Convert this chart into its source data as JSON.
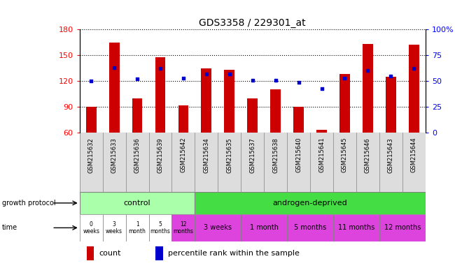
{
  "title": "GDS3358 / 229301_at",
  "samples": [
    "GSM215632",
    "GSM215633",
    "GSM215636",
    "GSM215639",
    "GSM215642",
    "GSM215634",
    "GSM215635",
    "GSM215637",
    "GSM215638",
    "GSM215640",
    "GSM215641",
    "GSM215645",
    "GSM215646",
    "GSM215643",
    "GSM215644"
  ],
  "counts": [
    90,
    165,
    100,
    148,
    92,
    135,
    133,
    100,
    110,
    90,
    63,
    128,
    163,
    125,
    162
  ],
  "percentile_ranks": [
    50,
    63,
    52,
    62,
    53,
    57,
    57,
    51,
    51,
    49,
    43,
    53,
    60,
    55,
    62
  ],
  "ylim_left": [
    60,
    180
  ],
  "ylim_right": [
    0,
    100
  ],
  "yticks_left": [
    60,
    90,
    120,
    150,
    180
  ],
  "yticks_right": [
    0,
    25,
    50,
    75,
    100
  ],
  "bar_color": "#cc0000",
  "dot_color": "#0000cc",
  "bar_base": 60,
  "ctrl_color": "#aaffaa",
  "andro_color": "#44dd44",
  "time_color_ctrl_normal": "#ffffff",
  "time_color_ctrl_pink": "#dd44dd",
  "time_color_andro": "#dd44dd",
  "xticklabel_bg": "#dddddd",
  "bg_color": "#ffffff",
  "title_fontsize": 10
}
